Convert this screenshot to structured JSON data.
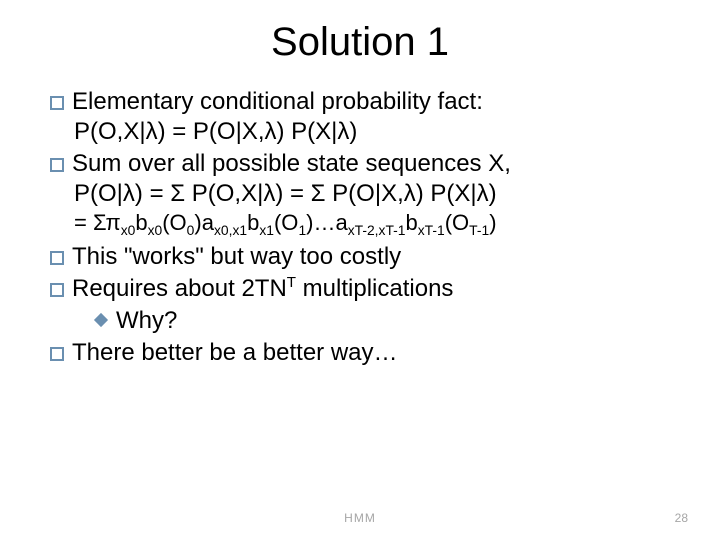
{
  "title": "Solution 1",
  "bullets": {
    "b1_text": "Elementary conditional probability fact:",
    "b1_sub": "P(O,X|λ) = P(O|X,λ) P(X|λ)",
    "b2_text": "Sum over all possible state sequences X,",
    "b2_sub1": "P(O|λ) = Σ P(O,X|λ) = Σ P(O|X,λ) P(X|λ)",
    "b2_sub2_pre": "= Σπ",
    "b2_sub2_s1": "x0",
    "b2_sub2_b": "b",
    "b2_sub2_s2": "x0",
    "b2_sub2_o0": "(O",
    "b2_sub2_o0s": "0",
    "b2_sub2_o0c": ")a",
    "b2_sub2_s3": "x0,x1",
    "b2_sub2_b2": "b",
    "b2_sub2_s4": "x1",
    "b2_sub2_o1": "(O",
    "b2_sub2_o1s": "1",
    "b2_sub2_o1c": ")…a",
    "b2_sub2_s5": "xT-2,xT-1",
    "b2_sub2_b3": "b",
    "b2_sub2_s6": "xT-1",
    "b2_sub2_ot": "(O",
    "b2_sub2_ots": "T-1",
    "b2_sub2_otc": ")",
    "b3_text": "This \"works\" but way too costly",
    "b4_pre": "Requires about 2TN",
    "b4_sup": "T",
    "b4_post": " multiplications",
    "b4_sub": "Why?",
    "b5_text": "There better be a better way…"
  },
  "footer": {
    "center": "HMM",
    "page": "28"
  },
  "colors": {
    "text": "#000000",
    "bullet_border": "#6a8fb0",
    "footer": "#a6a6a6",
    "background": "#ffffff"
  },
  "typography": {
    "title_fontsize": 40,
    "body_fontsize": 24,
    "footer_fontsize": 12,
    "font_family": "Comic Sans MS"
  }
}
